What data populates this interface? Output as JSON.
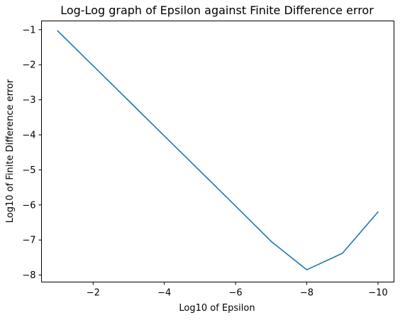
{
  "chart_data": {
    "type": "line",
    "title": "Log-Log graph of Epsilon against Finite Difference error",
    "xlabel": "Log10 of Epsilon",
    "ylabel": "Log10 of Finite Difference error",
    "xlim": [
      -0.55,
      -10.45
    ],
    "ylim": [
      -8.2,
      -0.75
    ],
    "x_ticks": [
      -2,
      -4,
      -6,
      -8,
      -10
    ],
    "y_ticks": [
      -1,
      -2,
      -3,
      -4,
      -5,
      -6,
      -7,
      -8
    ],
    "x_tick_labels": [
      "−2",
      "−4",
      "−6",
      "−8",
      "−10"
    ],
    "y_tick_labels": [
      "−1",
      "−2",
      "−3",
      "−4",
      "−5",
      "−6",
      "−7",
      "−8"
    ],
    "grid": false,
    "series": [
      {
        "color": "#1f77b4",
        "x": [
          -1,
          -2,
          -3,
          -4,
          -5,
          -6,
          -7,
          -8,
          -9,
          -10
        ],
        "y": [
          -1.03,
          -2.03,
          -3.03,
          -4.03,
          -5.03,
          -6.03,
          -7.04,
          -7.85,
          -7.38,
          -6.2
        ]
      }
    ]
  }
}
